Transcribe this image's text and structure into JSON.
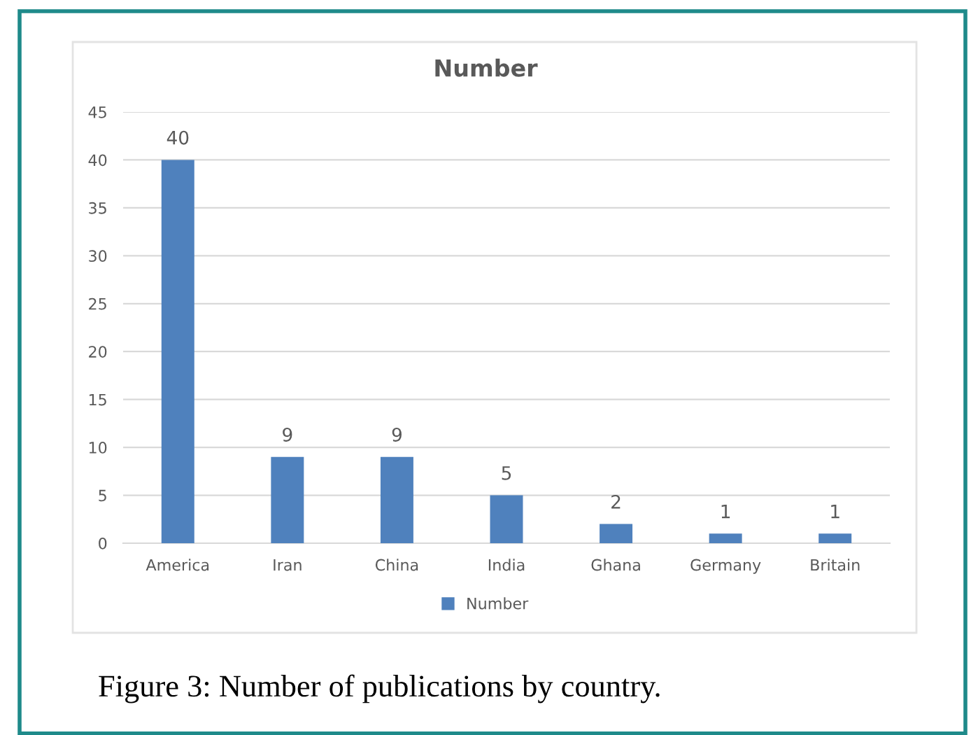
{
  "chart_data": {
    "type": "bar",
    "title": "Number",
    "categories": [
      "America",
      "Iran",
      "China",
      "India",
      "Ghana",
      "Germany",
      "Britain"
    ],
    "series": [
      {
        "name": "Number",
        "color": "#4f81bd",
        "values": [
          40,
          9,
          9,
          5,
          2,
          1,
          1
        ]
      }
    ],
    "ylim": [
      0,
      45
    ],
    "yticks": [
      0,
      5,
      10,
      15,
      20,
      25,
      30,
      35,
      40,
      45
    ],
    "grid": "y",
    "legend": "bottom",
    "data_labels": true,
    "annotations": [
      "Figure 3: Number of publications by country."
    ]
  }
}
